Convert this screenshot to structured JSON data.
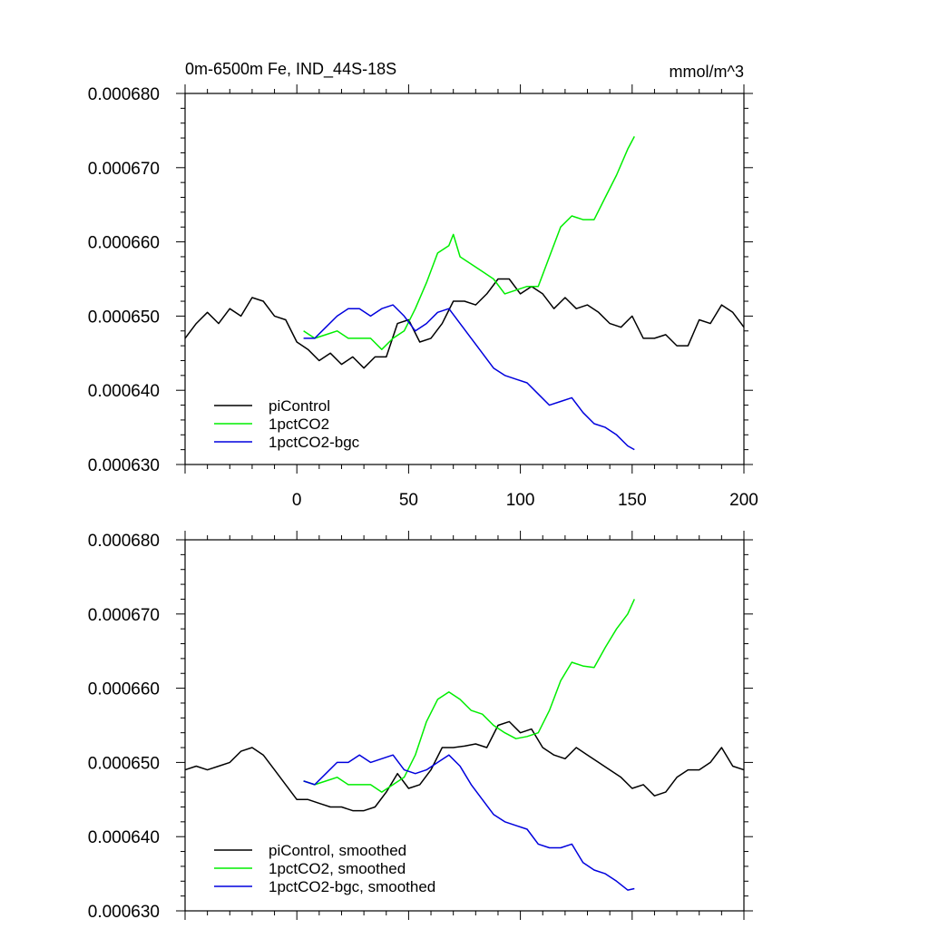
{
  "chart_data": [
    {
      "type": "line",
      "title": "0m-6500m Fe, IND_44S-18S",
      "units": "mmol/m^3",
      "xlim": [
        -50,
        200
      ],
      "ylim": [
        0.00063,
        0.00068
      ],
      "xticks": [
        0,
        50,
        100,
        150,
        200
      ],
      "yticks": [
        "0.000630",
        "0.000640",
        "0.000650",
        "0.000660",
        "0.000670",
        "0.000680"
      ],
      "series": [
        {
          "name": "piControl",
          "color": "#000000",
          "x": [
            -50,
            -45,
            -40,
            -35,
            -30,
            -25,
            -20,
            -15,
            -10,
            -5,
            0,
            5,
            10,
            15,
            20,
            25,
            30,
            35,
            40,
            45,
            50,
            55,
            60,
            65,
            70,
            75,
            80,
            85,
            90,
            95,
            100,
            105,
            110,
            115,
            120,
            125,
            130,
            135,
            140,
            145,
            150,
            155,
            160,
            165,
            170,
            175,
            180,
            185,
            190,
            195,
            200
          ],
          "y": [
            0.000647,
            0.000649,
            0.0006505,
            0.000649,
            0.000651,
            0.00065,
            0.0006525,
            0.000652,
            0.00065,
            0.0006495,
            0.0006465,
            0.0006455,
            0.000644,
            0.000645,
            0.0006435,
            0.0006445,
            0.000643,
            0.0006445,
            0.0006445,
            0.000649,
            0.0006495,
            0.0006465,
            0.000647,
            0.000649,
            0.000652,
            0.000652,
            0.0006515,
            0.000653,
            0.000655,
            0.000655,
            0.000653,
            0.000654,
            0.000653,
            0.000651,
            0.0006525,
            0.000651,
            0.0006515,
            0.0006505,
            0.000649,
            0.0006485,
            0.00065,
            0.000647,
            0.000647,
            0.0006475,
            0.000646,
            0.000646,
            0.0006495,
            0.000649,
            0.0006515,
            0.0006505,
            0.0006485
          ]
        },
        {
          "name": "1pctCO2",
          "color": "#00ee00",
          "x": [
            3,
            8,
            13,
            18,
            23,
            28,
            33,
            38,
            43,
            48,
            53,
            58,
            63,
            68,
            70,
            73,
            78,
            83,
            88,
            93,
            98,
            103,
            108,
            113,
            118,
            123,
            128,
            133,
            138,
            143,
            148,
            151
          ],
          "y": [
            0.000648,
            0.000647,
            0.0006475,
            0.000648,
            0.000647,
            0.000647,
            0.000647,
            0.0006455,
            0.000647,
            0.000648,
            0.000651,
            0.0006545,
            0.0006585,
            0.0006595,
            0.000661,
            0.000658,
            0.000657,
            0.000656,
            0.000655,
            0.000653,
            0.0006535,
            0.000654,
            0.000654,
            0.000658,
            0.000662,
            0.0006635,
            0.000663,
            0.000663,
            0.000666,
            0.000669,
            0.0006725,
            0.0006742
          ]
        },
        {
          "name": "1pctCO2-bgc",
          "color": "#0000dd",
          "x": [
            3,
            8,
            13,
            18,
            23,
            28,
            33,
            38,
            43,
            48,
            53,
            58,
            63,
            68,
            73,
            78,
            83,
            88,
            93,
            98,
            103,
            108,
            113,
            118,
            123,
            128,
            133,
            138,
            143,
            148,
            151
          ],
          "y": [
            0.000647,
            0.000647,
            0.0006485,
            0.00065,
            0.000651,
            0.000651,
            0.00065,
            0.000651,
            0.0006515,
            0.00065,
            0.000648,
            0.000649,
            0.0006505,
            0.000651,
            0.000649,
            0.000647,
            0.000645,
            0.000643,
            0.000642,
            0.0006415,
            0.000641,
            0.0006395,
            0.000638,
            0.0006385,
            0.000639,
            0.000637,
            0.0006355,
            0.000635,
            0.000634,
            0.0006325,
            0.000632
          ]
        }
      ],
      "legend": [
        "piControl",
        "1pctCO2",
        "1pctCO2-bgc"
      ],
      "legend_position": "bottom-left"
    },
    {
      "type": "line",
      "xlim": [
        -50,
        200
      ],
      "ylim": [
        0.00063,
        0.00068
      ],
      "xticks": [
        0,
        50,
        100,
        150,
        200
      ],
      "yticks": [
        "0.000630",
        "0.000640",
        "0.000650",
        "0.000660",
        "0.000670",
        "0.000680"
      ],
      "series": [
        {
          "name": "piControl, smoothed",
          "color": "#000000",
          "x": [
            -50,
            -45,
            -40,
            -35,
            -30,
            -25,
            -20,
            -15,
            -10,
            -5,
            0,
            5,
            10,
            15,
            20,
            25,
            30,
            35,
            40,
            45,
            50,
            55,
            60,
            65,
            70,
            75,
            80,
            85,
            90,
            95,
            100,
            105,
            110,
            115,
            120,
            125,
            130,
            135,
            140,
            145,
            150,
            155,
            160,
            165,
            170,
            175,
            180,
            185,
            190,
            195,
            200
          ],
          "y": [
            0.000649,
            0.0006495,
            0.000649,
            0.0006495,
            0.00065,
            0.0006515,
            0.000652,
            0.000651,
            0.000649,
            0.000647,
            0.000645,
            0.000645,
            0.0006445,
            0.000644,
            0.000644,
            0.0006435,
            0.0006435,
            0.000644,
            0.000646,
            0.0006485,
            0.0006465,
            0.000647,
            0.000649,
            0.000652,
            0.000652,
            0.0006522,
            0.0006525,
            0.000652,
            0.000655,
            0.0006555,
            0.000654,
            0.0006545,
            0.000652,
            0.000651,
            0.0006505,
            0.000652,
            0.000651,
            0.00065,
            0.000649,
            0.000648,
            0.0006465,
            0.000647,
            0.0006455,
            0.000646,
            0.000648,
            0.000649,
            0.000649,
            0.00065,
            0.000652,
            0.0006495,
            0.000649
          ]
        },
        {
          "name": "1pctCO2, smoothed",
          "color": "#00ee00",
          "x": [
            3,
            8,
            13,
            18,
            23,
            28,
            33,
            38,
            43,
            48,
            53,
            58,
            63,
            68,
            73,
            78,
            83,
            88,
            93,
            98,
            103,
            108,
            113,
            118,
            123,
            128,
            133,
            138,
            143,
            148,
            151
          ],
          "y": [
            0.0006475,
            0.000647,
            0.0006475,
            0.000648,
            0.000647,
            0.000647,
            0.000647,
            0.000646,
            0.000647,
            0.000648,
            0.000651,
            0.0006555,
            0.0006585,
            0.0006595,
            0.0006585,
            0.000657,
            0.0006565,
            0.000655,
            0.000654,
            0.0006532,
            0.0006535,
            0.000654,
            0.000657,
            0.000661,
            0.0006635,
            0.000663,
            0.0006628,
            0.0006655,
            0.000668,
            0.00067,
            0.000672
          ]
        },
        {
          "name": "1pctCO2-bgc, smoothed",
          "color": "#0000dd",
          "x": [
            3,
            8,
            13,
            18,
            23,
            28,
            33,
            38,
            43,
            48,
            53,
            58,
            63,
            68,
            73,
            78,
            83,
            88,
            93,
            98,
            103,
            108,
            113,
            118,
            123,
            128,
            133,
            138,
            143,
            148,
            151
          ],
          "y": [
            0.0006475,
            0.000647,
            0.0006485,
            0.00065,
            0.00065,
            0.000651,
            0.00065,
            0.0006505,
            0.000651,
            0.000649,
            0.0006485,
            0.000649,
            0.00065,
            0.000651,
            0.0006495,
            0.000647,
            0.000645,
            0.000643,
            0.000642,
            0.0006415,
            0.000641,
            0.000639,
            0.0006385,
            0.0006385,
            0.000639,
            0.0006365,
            0.0006355,
            0.000635,
            0.000634,
            0.0006328,
            0.000633
          ]
        }
      ],
      "legend": [
        "piControl, smoothed",
        "1pctCO2, smoothed",
        "1pctCO2-bgc, smoothed"
      ],
      "legend_position": "bottom-left"
    }
  ]
}
